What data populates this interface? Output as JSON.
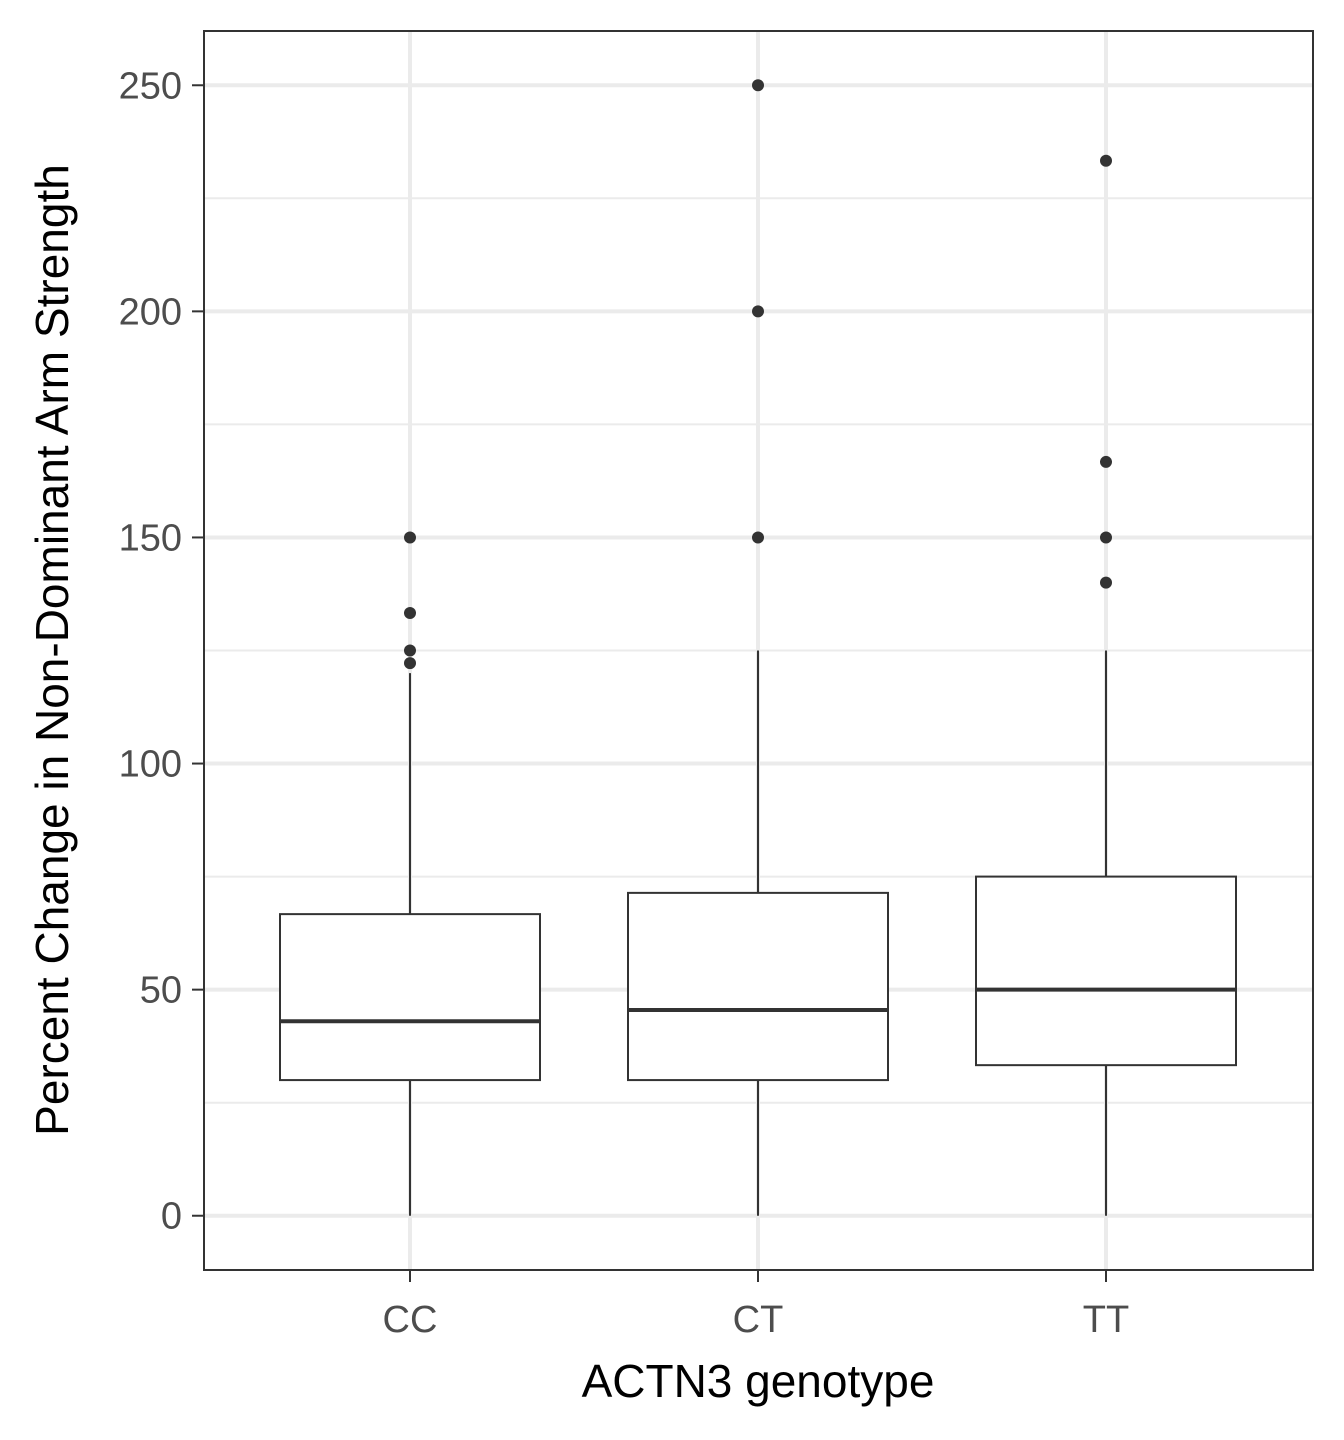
{
  "chart_data": {
    "type": "box",
    "xlabel": "ACTN3 genotype",
    "ylabel": "Percent Change in Non-Dominant Arm Strength",
    "categories": [
      "CC",
      "CT",
      "TT"
    ],
    "ylim": [
      -12,
      262
    ],
    "y_major_ticks": [
      0,
      50,
      100,
      150,
      200,
      250
    ],
    "y_minor_ticks": [
      25,
      75,
      125,
      175,
      225
    ],
    "grid": true,
    "theme": "bw",
    "boxes": [
      {
        "category": "CC",
        "whisker_low": 0,
        "q1": 30,
        "median": 43,
        "q3": 66.7,
        "whisker_high": 120,
        "outliers": [
          122.2,
          125,
          133.3,
          150
        ]
      },
      {
        "category": "CT",
        "whisker_low": 0,
        "q1": 30,
        "median": 45.5,
        "q3": 71.4,
        "whisker_high": 125,
        "outliers": [
          150,
          200,
          250
        ]
      },
      {
        "category": "TT",
        "whisker_low": 0,
        "q1": 33.3,
        "median": 50,
        "q3": 75,
        "whisker_high": 125,
        "outliers": [
          140,
          150,
          166.7,
          233.3
        ]
      }
    ],
    "colors": {
      "box_stroke": "#333333",
      "grid": "#ebebeb",
      "panel_border": "#333333",
      "tick_text": "#4d4d4d",
      "title_text": "#000000"
    }
  }
}
